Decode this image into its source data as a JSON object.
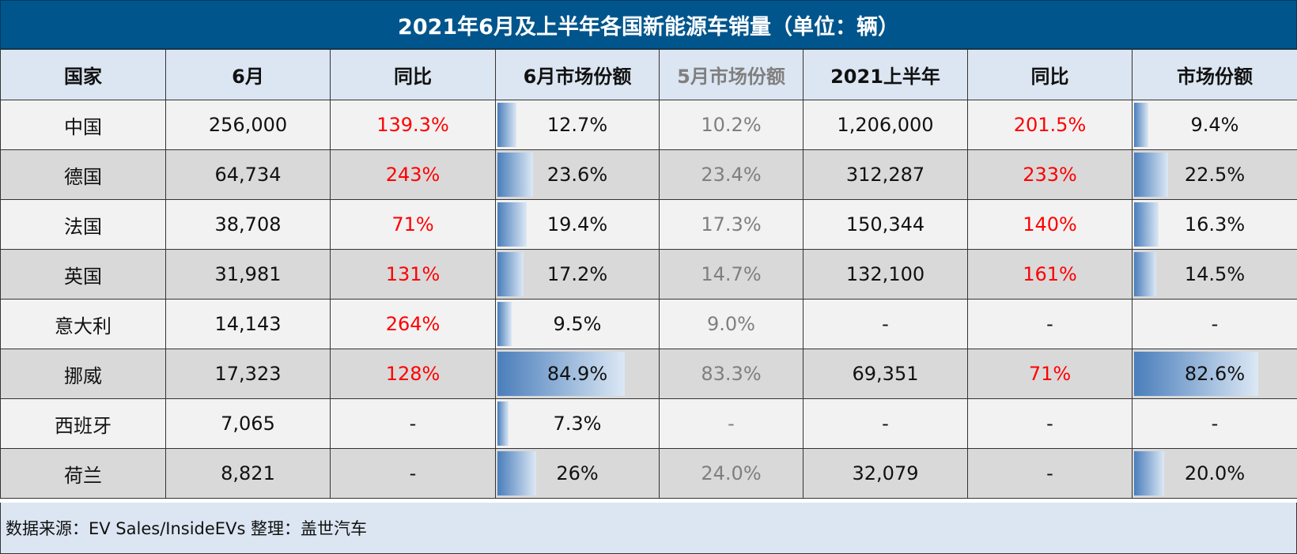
{
  "title": "2021年6月及上半年各国新能源车销量（单位：辆）",
  "headers": [
    "国家",
    "6月",
    "同比",
    "6月市场份额",
    "5月市场份额",
    "2021上半年",
    "同比",
    "市场份额"
  ],
  "rows": [
    {
      "country": "中国",
      "june": "256,000",
      "june_yoy": "139.3%",
      "june_share": "12.7%",
      "may_share": "10.2%",
      "h1": "1,206,000",
      "h1_yoy": "201.5%",
      "h1_share": "9.4%"
    },
    {
      "country": "德国",
      "june": "64,734",
      "june_yoy": "243%",
      "june_share": "23.6%",
      "may_share": "23.4%",
      "h1": "312,287",
      "h1_yoy": "233%",
      "h1_share": "22.5%"
    },
    {
      "country": "法国",
      "june": "38,708",
      "june_yoy": "71%",
      "june_share": "19.4%",
      "may_share": "17.3%",
      "h1": "150,344",
      "h1_yoy": "140%",
      "h1_share": "16.3%"
    },
    {
      "country": "英国",
      "june": "31,981",
      "june_yoy": "131%",
      "june_share": "17.2%",
      "may_share": "14.7%",
      "h1": "132,100",
      "h1_yoy": "161%",
      "h1_share": "14.5%"
    },
    {
      "country": "意大利",
      "june": "14,143",
      "june_yoy": "264%",
      "june_share": "9.5%",
      "may_share": "9.0%",
      "h1": "-",
      "h1_yoy": "-",
      "h1_share": "-"
    },
    {
      "country": "挪威",
      "june": "17,323",
      "june_yoy": "128%",
      "june_share": "84.9%",
      "may_share": "83.3%",
      "h1": "69,351",
      "h1_yoy": "71%",
      "h1_share": "82.6%"
    },
    {
      "country": "西班牙",
      "june": "7,065",
      "june_yoy": "-",
      "june_share": "7.3%",
      "may_share": "-",
      "h1": "-",
      "h1_yoy": "-",
      "h1_share": "-"
    },
    {
      "country": "荷兰",
      "june": "8,821",
      "june_yoy": "-",
      "june_share": "26%",
      "may_share": "24.0%",
      "h1": "32,079",
      "h1_yoy": "-",
      "h1_share": "20.0%"
    }
  ],
  "footer": "数据来源：EV Sales/InsideEVs 整理：盖世汽车",
  "colors": {
    "title_bg": "#00558c",
    "header_bg": "#dce6f2",
    "yoy_text": "#ff0000",
    "bar_start": "#4a7ebb",
    "bar_end": "#dce8f5"
  },
  "chart_data": {
    "type": "table",
    "title": "2021年6月及上半年各国新能源车销量（单位：辆）",
    "columns": [
      "国家",
      "6月",
      "同比",
      "6月市场份额",
      "5月市场份额",
      "2021上半年",
      "同比",
      "市场份额"
    ],
    "categories": [
      "中国",
      "德国",
      "法国",
      "英国",
      "意大利",
      "挪威",
      "西班牙",
      "荷兰"
    ],
    "series": [
      {
        "name": "6月",
        "values": [
          256000,
          64734,
          38708,
          31981,
          14143,
          17323,
          7065,
          8821
        ]
      },
      {
        "name": "6月同比(%)",
        "values": [
          139.3,
          243,
          71,
          131,
          264,
          128,
          null,
          null
        ]
      },
      {
        "name": "6月市场份额(%)",
        "values": [
          12.7,
          23.6,
          19.4,
          17.2,
          9.5,
          84.9,
          7.3,
          26
        ]
      },
      {
        "name": "5月市场份额(%)",
        "values": [
          10.2,
          23.4,
          17.3,
          14.7,
          9.0,
          83.3,
          null,
          24.0
        ]
      },
      {
        "name": "2021上半年",
        "values": [
          1206000,
          312287,
          150344,
          132100,
          null,
          69351,
          null,
          32079
        ]
      },
      {
        "name": "上半年同比(%)",
        "values": [
          201.5,
          233,
          140,
          161,
          null,
          71,
          null,
          null
        ]
      },
      {
        "name": "上半年市场份额(%)",
        "values": [
          9.4,
          22.5,
          16.3,
          14.5,
          null,
          82.6,
          null,
          20.0
        ]
      }
    ],
    "data_bars": [
      "6月市场份额",
      "市场份额"
    ],
    "source": "数据来源：EV Sales/InsideEVs 整理：盖世汽车"
  }
}
